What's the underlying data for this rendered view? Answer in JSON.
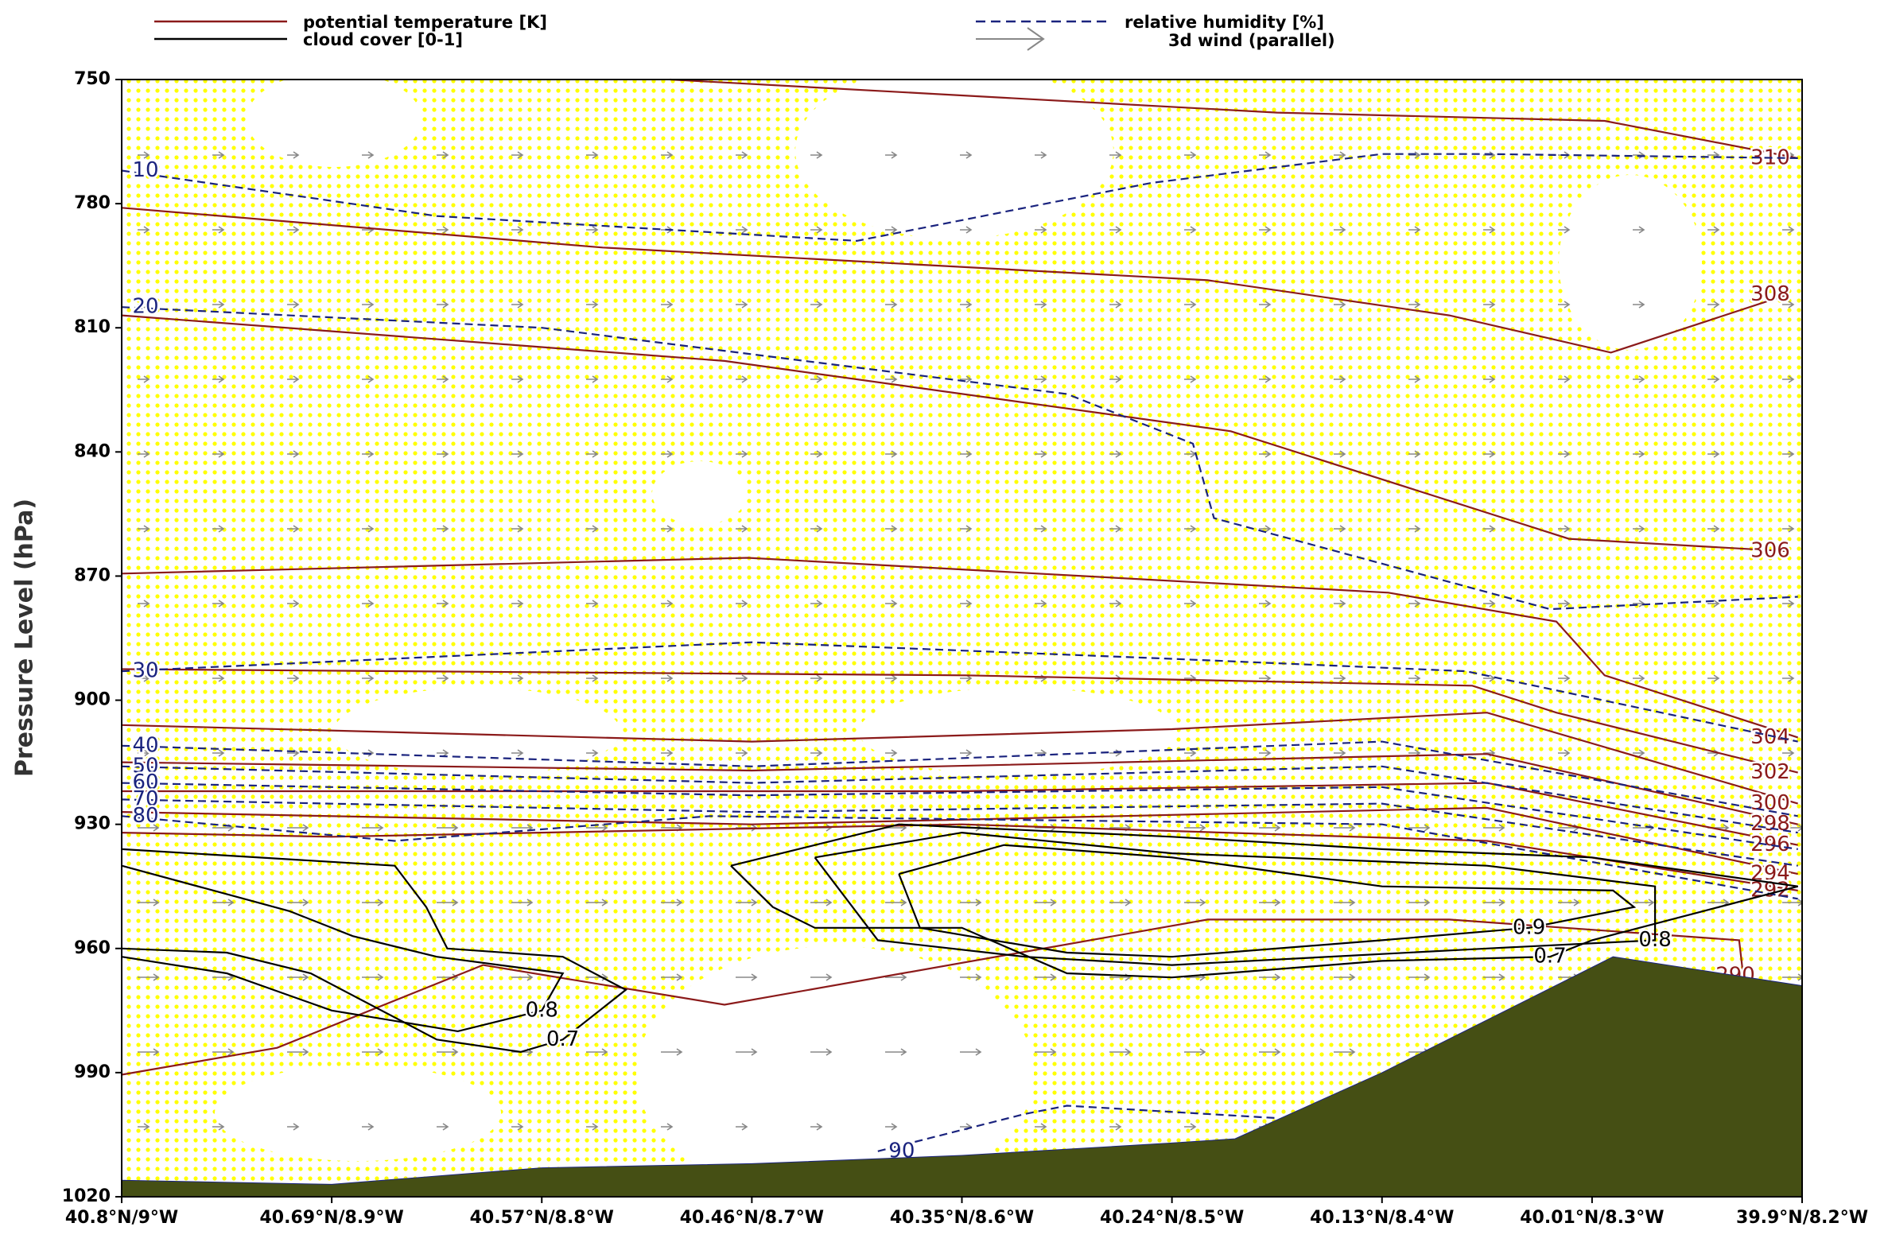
{
  "chart_data": {
    "type": "cross-section",
    "ylabel": "Pressure Level (hPa)",
    "categories": [
      "40.8°N/9°W",
      "40.69°N/8.9°W",
      "40.57°N/8.8°W",
      "40.46°N/8.7°W",
      "40.35°N/8.6°W",
      "40.24°N/8.5°W",
      "40.13°N/8.4°W",
      "40.01°N/8.3°W",
      "39.9°N/8.2°W"
    ],
    "ylim": [
      750,
      1020
    ],
    "yticks": [
      750,
      780,
      810,
      840,
      870,
      900,
      930,
      960,
      990,
      1020
    ],
    "y_inverted": true,
    "fields": [
      {
        "name": "potential temperature [K]",
        "color": "#8b1a1a",
        "dashed": false,
        "contours": [
          {
            "level": 310,
            "x": [
              2.61,
              5.5,
              7.06,
              7.98
            ],
            "p": [
              750,
              758,
              760,
              769
            ]
          },
          {
            "level": 308,
            "x": [
              0,
              2.29,
              5.17,
              6.32,
              7.09,
              7.93
            ],
            "p": [
              781,
              790.6,
              798.5,
              807,
              816,
              802
            ]
          },
          {
            "level": 306,
            "x": [
              0,
              2.87,
              5.28,
              6.89,
              7.93
            ],
            "p": [
              807,
              818,
              835,
              861,
              864
            ]
          },
          {
            "level": 304,
            "x": [
              0,
              2.98,
              6.03,
              6.83,
              7.06,
              7.98
            ],
            "p": [
              869.4,
              865.6,
              874,
              881,
              894,
              909
            ]
          },
          {
            "level": 302,
            "x": [
              0,
              4.02,
              6.43,
              6.83,
              7.98
            ],
            "p": [
              892.5,
              894,
              896.5,
              903,
              917.5
            ]
          },
          {
            "level": 300,
            "x": [
              0,
              3,
              5,
              6.5,
              7.98
            ],
            "p": [
              906,
              910,
              907,
              903,
              925
            ]
          },
          {
            "level": 298,
            "x": [
              0,
              3,
              6.5,
              7.98
            ],
            "p": [
              915,
              917,
              913,
              930
            ]
          },
          {
            "level": 296,
            "x": [
              0,
              4,
              6.5,
              7.98
            ],
            "p": [
              922,
              922,
              920,
              935
            ]
          },
          {
            "level": 294,
            "x": [
              0,
              3,
              6.5,
              7.98
            ],
            "p": [
              927,
              930,
              926,
              942
            ]
          },
          {
            "level": 292,
            "x": [
              0,
              1,
              4,
              6.5,
              7.98
            ],
            "p": [
              932,
              933,
              930,
              934,
              946
            ]
          },
          {
            "level": 290,
            "x": [
              0,
              0.74,
              1.72,
              2.87,
              5.17,
              6.32,
              7.7,
              7.72
            ],
            "p": [
              990.5,
              984,
              964,
              973.6,
              953,
              953,
              958,
              966.6
            ]
          }
        ]
      },
      {
        "name": "relative humidity [%]",
        "color": "#1a237e",
        "dashed": true,
        "contours": [
          {
            "level": 10,
            "x": [
              0,
              1.5,
              3.5,
              4.9,
              6,
              6.5,
              7.98
            ],
            "p": [
              772,
              783,
              789,
              775,
              768,
              768,
              769
            ]
          },
          {
            "level": 20,
            "x": [
              0,
              2,
              4.5,
              5.1,
              5.2,
              6.8,
              7.98
            ],
            "p": [
              805,
              810,
              826,
              838,
              856,
              878,
              875
            ]
          },
          {
            "level": 30,
            "x": [
              0,
              3,
              5,
              6.4,
              7.98
            ],
            "p": [
              893,
              886,
              890,
              893,
              910
            ]
          },
          {
            "level": 40,
            "x": [
              0,
              3,
              6,
              7.98
            ],
            "p": [
              911,
              916,
              910,
              928
            ]
          },
          {
            "level": 50,
            "x": [
              0,
              3,
              6,
              7.98
            ],
            "p": [
              916,
              920,
              916,
              932
            ]
          },
          {
            "level": 60,
            "x": [
              0,
              3,
              6,
              7.98
            ],
            "p": [
              920,
              923,
              921,
              936
            ]
          },
          {
            "level": 70,
            "x": [
              0,
              3,
              6,
              7.98
            ],
            "p": [
              924,
              927,
              925,
              940
            ]
          },
          {
            "level": 80,
            "x": [
              0,
              1.3,
              2.8,
              6,
              7.98
            ],
            "p": [
              928,
              934,
              928,
              930,
              948
            ]
          },
          {
            "level": 90,
            "x": [
              3.6,
              4.3,
              4.5,
              5.5,
              5.65
            ],
            "p": [
              1009,
              1000,
              998,
              1001,
              1005
            ]
          }
        ]
      },
      {
        "name": "cloud cover [0-1]",
        "color": "#000000",
        "dashed": false,
        "contours": [
          {
            "level": 0.7,
            "x": [
              0,
              1.3,
              1.45,
              1.55,
              2.1,
              2.4,
              2.1,
              1.9,
              1.5,
              0.9,
              0.5,
              0
            ],
            "p": [
              936,
              940,
              950,
              960,
              962,
              970,
              982,
              985,
              982,
              966,
              961,
              960
            ]
          },
          {
            "level": 0.8,
            "x": [
              0,
              0.8,
              1.1,
              1.5,
              2.1,
              2,
              1.6,
              1,
              0.5,
              0
            ],
            "p": [
              940,
              951,
              957,
              962,
              966,
              975,
              980,
              975,
              966,
              962
            ]
          },
          {
            "level": 0.7,
            "x": [
              2.9,
              3.7,
              5,
              6,
              7,
              7.98,
              7,
              6.8,
              6,
              5,
              4.5,
              4,
              3.3,
              3.1,
              2.9
            ],
            "p": [
              940,
              930,
              933,
              936,
              938,
              945,
              958,
              962,
              963,
              967,
              966,
              955,
              955,
              950,
              940
            ]
          },
          {
            "level": 0.8,
            "x": [
              3.3,
              4,
              5,
              6.5,
              7.3,
              7.3,
              6.5,
              5,
              4.3,
              3.6,
              3.3
            ],
            "p": [
              938,
              932,
              937,
              940,
              945,
              958,
              960,
              964,
              962,
              958,
              938
            ]
          },
          {
            "level": 0.9,
            "x": [
              3.7,
              4.2,
              5,
              6,
              7.1,
              7.2,
              6.7,
              6,
              5,
              4.5,
              3.8,
              3.7
            ],
            "p": [
              942,
              935,
              938,
              945,
              946,
              950,
              955,
              958,
              962,
              961,
              955,
              942
            ]
          }
        ]
      }
    ],
    "wind": {
      "name": "3d wind (parallel)",
      "color": "#888888"
    },
    "terrain": {
      "color": "#454f14",
      "x": [
        0,
        1,
        2,
        3,
        4,
        5,
        5.3,
        6,
        7.1,
        8
      ],
      "p": [
        1016,
        1017,
        1013,
        1012,
        1010,
        1007,
        1006,
        990,
        962,
        969
      ]
    }
  }
}
